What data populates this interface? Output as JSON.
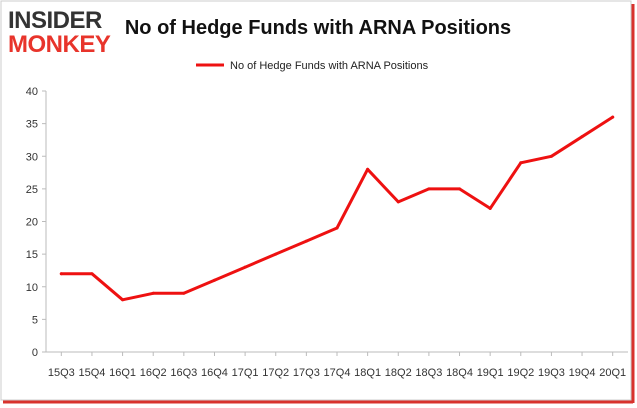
{
  "logo": {
    "line1": "INSIDER",
    "line2": "MONKEY",
    "color_dark": "#333333",
    "color_accent": "#e8342b"
  },
  "chart_data": {
    "type": "line",
    "title": "No of Hedge Funds with ARNA Positions",
    "xlabel": "",
    "ylabel": "",
    "categories": [
      "2015Q3",
      "2015Q4",
      "2016Q1",
      "2016Q2",
      "2016Q3",
      "2016Q4",
      "2017Q1",
      "2017Q2",
      "2017Q3",
      "2017Q4",
      "2018Q1",
      "2018Q2",
      "2018Q3",
      "2018Q4",
      "2019Q1",
      "2019Q2",
      "2019Q3",
      "2019Q4",
      "2020Q1"
    ],
    "tick_labels": [
      "15Q3",
      "15Q4",
      "16Q1",
      "16Q2",
      "16Q3",
      "16Q4",
      "17Q1",
      "17Q2",
      "17Q3",
      "17Q4",
      "18Q1",
      "18Q2",
      "18Q3",
      "18Q4",
      "19Q1",
      "19Q2",
      "19Q3",
      "19Q4",
      "20Q1"
    ],
    "series": [
      {
        "name": "No of Hedge Funds with ARNA Positions",
        "color": "#ee1111",
        "values": [
          12,
          12,
          8,
          9,
          9,
          11,
          13,
          15,
          17,
          19,
          28,
          23,
          25,
          25,
          22,
          29,
          30,
          33,
          36
        ]
      }
    ],
    "ylim": [
      0,
      40
    ],
    "yticks": [
      0,
      5,
      10,
      15,
      20,
      25,
      30,
      35,
      40
    ],
    "grid": false,
    "legend_position": "top-center"
  }
}
